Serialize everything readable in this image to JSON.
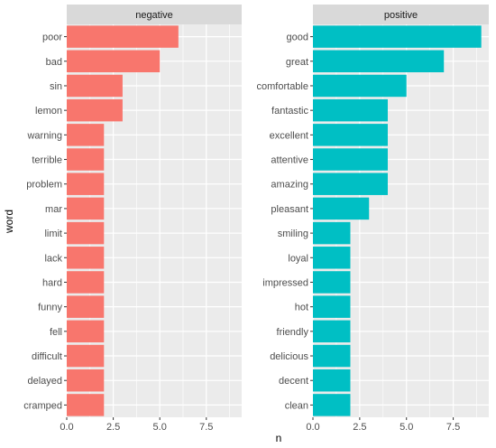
{
  "chart_data": {
    "type": "bar",
    "orientation": "horizontal",
    "xlabel": "n",
    "ylabel": "word",
    "xlim": [
      0,
      9.4
    ],
    "x_ticks": [
      "0.0",
      "2.5",
      "5.0",
      "7.5"
    ],
    "grid": true,
    "colors": {
      "negative": "#F8766D",
      "positive": "#00BFC4",
      "panel": "#EBEBEB",
      "strip": "#D9D9D9",
      "grid": "#FFFFFF"
    },
    "facets": [
      {
        "name": "negative",
        "categories": [
          "poor",
          "bad",
          "sin",
          "lemon",
          "warning",
          "terrible",
          "problem",
          "mar",
          "limit",
          "lack",
          "hard",
          "funny",
          "fell",
          "difficult",
          "delayed",
          "cramped"
        ],
        "values": [
          6,
          5,
          3,
          3,
          2,
          2,
          2,
          2,
          2,
          2,
          2,
          2,
          2,
          2,
          2,
          2
        ]
      },
      {
        "name": "positive",
        "categories": [
          "good",
          "great",
          "comfortable",
          "fantastic",
          "excellent",
          "attentive",
          "amazing",
          "pleasant",
          "smiling",
          "loyal",
          "impressed",
          "hot",
          "friendly",
          "delicious",
          "decent",
          "clean"
        ],
        "values": [
          9,
          7,
          5,
          4,
          4,
          4,
          4,
          3,
          2,
          2,
          2,
          2,
          2,
          2,
          2,
          2
        ]
      }
    ]
  }
}
